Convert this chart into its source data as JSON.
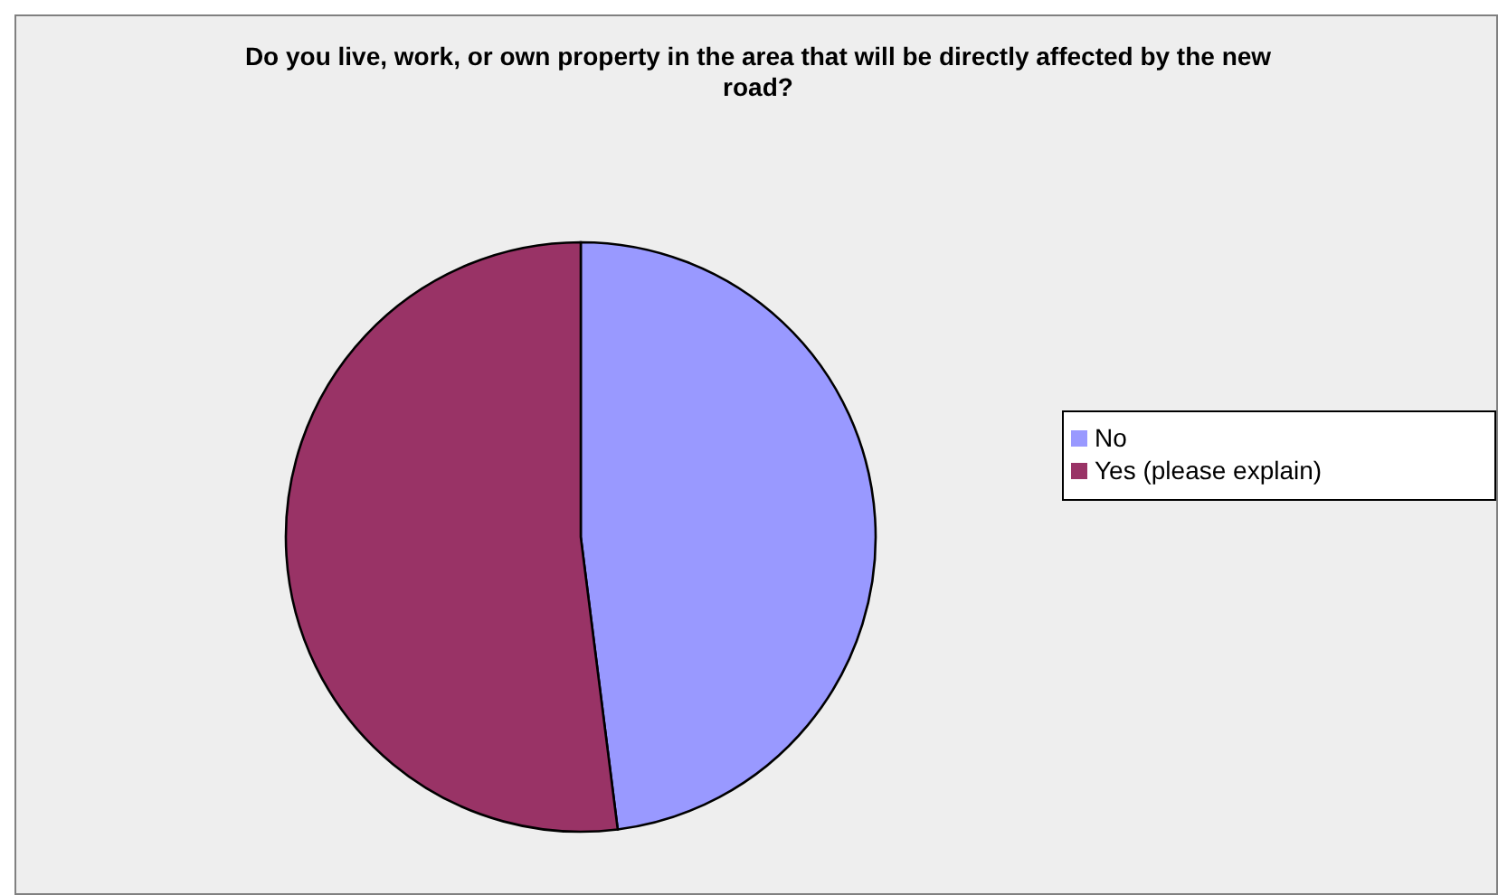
{
  "chart_data": {
    "type": "pie",
    "title": "Do you live, work, or own property in the area that will be directly affected by the new road?",
    "categories": [
      "No",
      "Yes (please explain)"
    ],
    "values": [
      48,
      52
    ],
    "colors": [
      "#9999ff",
      "#993366"
    ],
    "legend": "right"
  }
}
